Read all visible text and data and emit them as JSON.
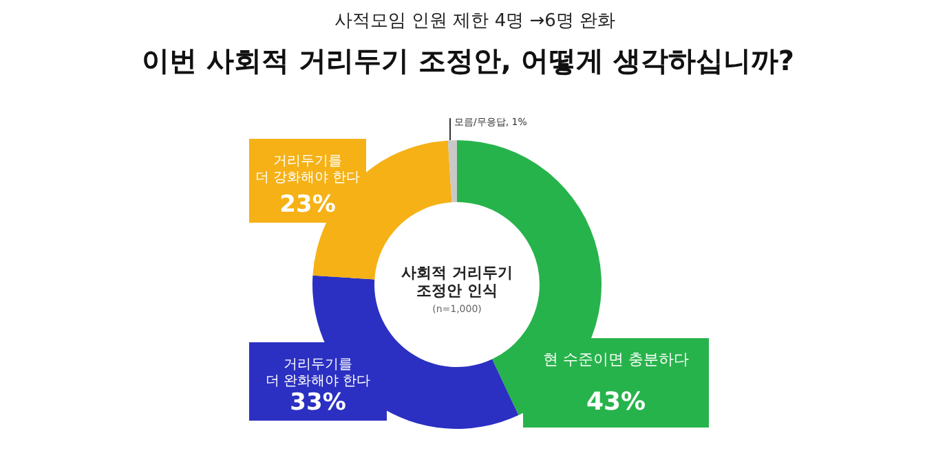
{
  "chart_data": {
    "type": "donut",
    "subtitle": "사적모임 인원 제한 4명 →6명 완화",
    "title": "이번 사회적 거리두기 조정안, 어떻게 생각하십니까?",
    "categories": [
      "현 수준이면 충분하다",
      "거리두기를 더 완화해야 한다",
      "거리두기를 더 강화해야 한다",
      "모름/무응답"
    ],
    "values": [
      43,
      33,
      23,
      1
    ],
    "colors": [
      "#27b34b",
      "#2b30c2",
      "#f5b116",
      "#c9c9c9"
    ],
    "value_labels": [
      "43%",
      "33%",
      "23%",
      "1%"
    ],
    "annotations": [
      "사회적 거리두기 조정안 인식",
      "(n=1,000)"
    ]
  }
}
